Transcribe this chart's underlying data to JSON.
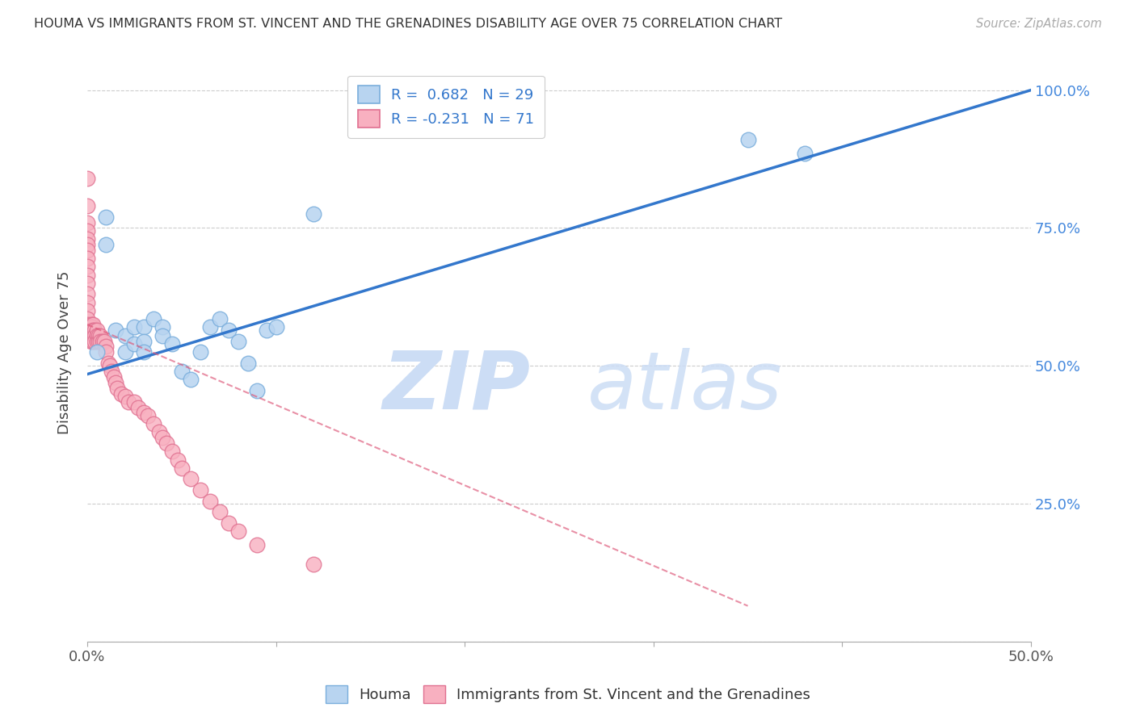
{
  "title": "HOUMA VS IMMIGRANTS FROM ST. VINCENT AND THE GRENADINES DISABILITY AGE OVER 75 CORRELATION CHART",
  "source": "Source: ZipAtlas.com",
  "ylabel": "Disability Age Over 75",
  "legend_r1": "R =  0.682   N = 29",
  "legend_r2": "R = -0.231   N = 71",
  "houma_color": "#b8d4f0",
  "houma_edge_color": "#7aaedc",
  "immigrants_color": "#f8b0c0",
  "immigrants_edge_color": "#e07090",
  "houma_line_color": "#3377cc",
  "immigrants_line_color": "#dd5577",
  "watermark_zip": "ZIP",
  "watermark_atlas": "atlas",
  "houma_points_x": [
    0.005,
    0.01,
    0.01,
    0.015,
    0.02,
    0.02,
    0.025,
    0.025,
    0.03,
    0.03,
    0.03,
    0.035,
    0.04,
    0.04,
    0.045,
    0.05,
    0.055,
    0.06,
    0.065,
    0.07,
    0.075,
    0.08,
    0.085,
    0.09,
    0.095,
    0.1,
    0.12,
    0.35,
    0.38
  ],
  "houma_points_y": [
    0.525,
    0.77,
    0.72,
    0.565,
    0.555,
    0.525,
    0.57,
    0.54,
    0.57,
    0.545,
    0.525,
    0.585,
    0.57,
    0.555,
    0.54,
    0.49,
    0.475,
    0.525,
    0.57,
    0.585,
    0.565,
    0.545,
    0.505,
    0.455,
    0.565,
    0.57,
    0.775,
    0.91,
    0.885
  ],
  "immigrants_points_x": [
    0.0,
    0.0,
    0.0,
    0.0,
    0.0,
    0.0,
    0.0,
    0.0,
    0.0,
    0.0,
    0.0,
    0.0,
    0.0,
    0.0,
    0.0,
    0.0,
    0.001,
    0.001,
    0.001,
    0.001,
    0.002,
    0.002,
    0.002,
    0.002,
    0.002,
    0.003,
    0.003,
    0.003,
    0.003,
    0.004,
    0.004,
    0.004,
    0.005,
    0.005,
    0.005,
    0.006,
    0.006,
    0.007,
    0.007,
    0.008,
    0.009,
    0.01,
    0.01,
    0.011,
    0.012,
    0.013,
    0.014,
    0.015,
    0.016,
    0.018,
    0.02,
    0.022,
    0.025,
    0.027,
    0.03,
    0.032,
    0.035,
    0.038,
    0.04,
    0.042,
    0.045,
    0.048,
    0.05,
    0.055,
    0.06,
    0.065,
    0.07,
    0.075,
    0.08,
    0.09,
    0.12
  ],
  "immigrants_points_y": [
    0.84,
    0.79,
    0.76,
    0.745,
    0.73,
    0.72,
    0.71,
    0.695,
    0.68,
    0.665,
    0.65,
    0.63,
    0.615,
    0.6,
    0.585,
    0.575,
    0.57,
    0.565,
    0.56,
    0.555,
    0.575,
    0.57,
    0.565,
    0.555,
    0.545,
    0.575,
    0.565,
    0.555,
    0.545,
    0.565,
    0.555,
    0.545,
    0.565,
    0.555,
    0.545,
    0.555,
    0.545,
    0.555,
    0.545,
    0.545,
    0.545,
    0.535,
    0.525,
    0.505,
    0.5,
    0.49,
    0.48,
    0.47,
    0.46,
    0.45,
    0.445,
    0.435,
    0.435,
    0.425,
    0.415,
    0.41,
    0.395,
    0.38,
    0.37,
    0.36,
    0.345,
    0.33,
    0.315,
    0.295,
    0.275,
    0.255,
    0.235,
    0.215,
    0.2,
    0.175,
    0.14
  ],
  "houma_trend_x": [
    0.0,
    0.5
  ],
  "houma_trend_y": [
    0.485,
    1.0
  ],
  "immigrants_trend_x": [
    0.0,
    0.35
  ],
  "immigrants_trend_y": [
    0.575,
    0.065
  ],
  "xlim": [
    0.0,
    0.5
  ],
  "ylim": [
    0.0,
    1.05
  ],
  "x_tick_positions": [
    0.0,
    0.1,
    0.2,
    0.3,
    0.4,
    0.5
  ],
  "x_tick_labels": [
    "0.0%",
    "",
    "",
    "",
    "",
    "50.0%"
  ],
  "y_tick_positions": [
    0.0,
    0.25,
    0.5,
    0.75,
    1.0
  ],
  "y_tick_labels_right": [
    "",
    "25.0%",
    "50.0%",
    "75.0%",
    "100.0%"
  ]
}
